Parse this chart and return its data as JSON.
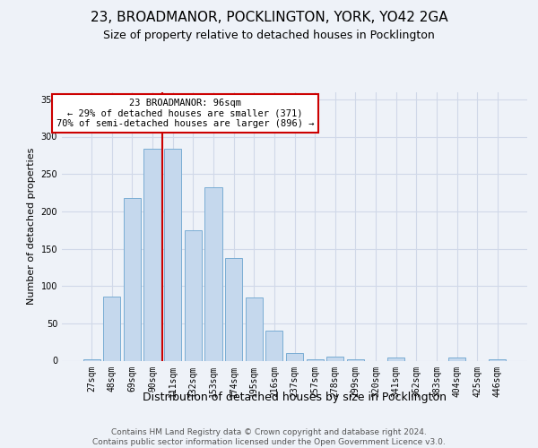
{
  "title_line1": "23, BROADMANOR, POCKLINGTON, YORK, YO42 2GA",
  "title_line2": "Size of property relative to detached houses in Pocklington",
  "xlabel": "Distribution of detached houses by size in Pocklington",
  "ylabel": "Number of detached properties",
  "categories": [
    "27sqm",
    "48sqm",
    "69sqm",
    "90sqm",
    "111sqm",
    "132sqm",
    "153sqm",
    "174sqm",
    "195sqm",
    "216sqm",
    "237sqm",
    "257sqm",
    "278sqm",
    "299sqm",
    "320sqm",
    "341sqm",
    "362sqm",
    "383sqm",
    "404sqm",
    "425sqm",
    "446sqm"
  ],
  "values": [
    2,
    86,
    218,
    284,
    284,
    175,
    232,
    138,
    85,
    40,
    10,
    2,
    6,
    2,
    0,
    4,
    0,
    0,
    4,
    0,
    2
  ],
  "bar_color": "#c5d8ed",
  "bar_edge_color": "#7aadd4",
  "vline_color": "#cc0000",
  "vline_x": 3.5,
  "annotation_text": "23 BROADMANOR: 96sqm\n← 29% of detached houses are smaller (371)\n70% of semi-detached houses are larger (896) →",
  "annotation_box_color": "white",
  "annotation_box_edge_color": "#cc0000",
  "ylim": [
    0,
    360
  ],
  "yticks": [
    0,
    50,
    100,
    150,
    200,
    250,
    300,
    350
  ],
  "grid_color": "#d0d8e8",
  "background_color": "#eef2f8",
  "footer_line1": "Contains HM Land Registry data © Crown copyright and database right 2024.",
  "footer_line2": "Contains public sector information licensed under the Open Government Licence v3.0.",
  "title_fontsize": 11,
  "subtitle_fontsize": 9,
  "xlabel_fontsize": 9,
  "ylabel_fontsize": 8,
  "tick_fontsize": 7,
  "annotation_fontsize": 7.5,
  "footer_fontsize": 6.5
}
